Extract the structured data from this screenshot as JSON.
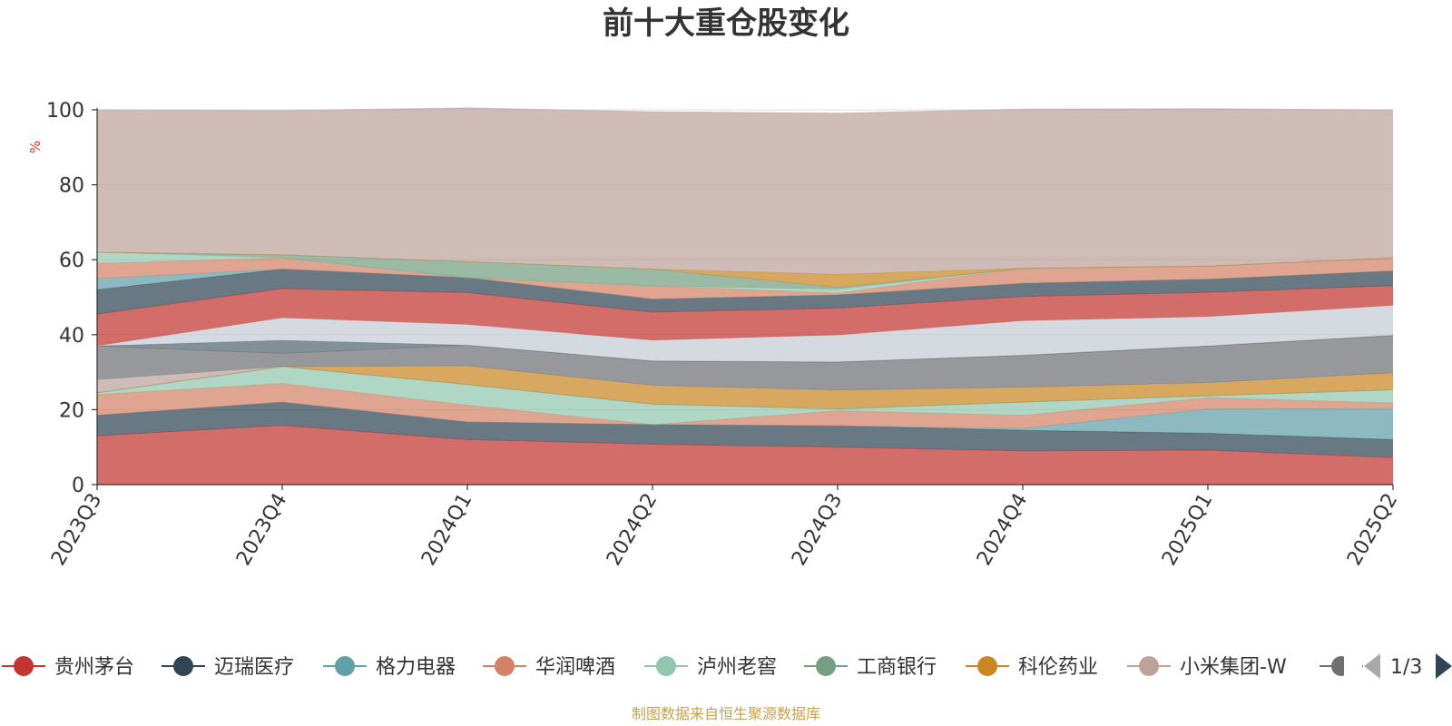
{
  "title": "前十大重仓股变化",
  "source_note": "制图数据来自恒生聚源数据库",
  "chart_data": {
    "type": "area",
    "stacked": true,
    "title": "前十大重仓股变化",
    "ylabel": "%",
    "ylim": [
      0,
      100
    ],
    "yticks": [
      0,
      20,
      40,
      60,
      80,
      100
    ],
    "grid": true,
    "legend_position": "bottom",
    "categories": [
      "2023Q3",
      "2023Q4",
      "2024Q1",
      "2024Q2",
      "2024Q3",
      "2024Q4",
      "2025Q1",
      "2025Q2"
    ],
    "series": [
      {
        "name": "贵州茅台",
        "color": "#c23531",
        "values": [
          13,
          15.8,
          12,
          10.8,
          10,
          9,
          9.2,
          7.2
        ]
      },
      {
        "name": "迈瑞医疗",
        "color": "#2f4554",
        "values": [
          5.5,
          6.2,
          4.7,
          5.2,
          5.7,
          5.5,
          4.5,
          4.8
        ]
      },
      {
        "name": "格力电器",
        "color": "#61a0a8",
        "values": [
          0,
          0,
          0,
          0,
          0,
          0.5,
          6.5,
          8.3
        ]
      },
      {
        "name": "华润啤酒",
        "color": "#d48265",
        "values": [
          5.5,
          5,
          4.5,
          0,
          4,
          3.5,
          3,
          1.5
        ]
      },
      {
        "name": "泸州老窖",
        "color": "#91c7ae",
        "values": [
          0.5,
          4.5,
          5.5,
          5.5,
          0.5,
          3.5,
          0.5,
          3.5
        ]
      },
      {
        "name": "工商银行",
        "color": "#749f83",
        "values": [
          0,
          0,
          0,
          0,
          0,
          0,
          0,
          0
        ]
      },
      {
        "name": "科伦药业",
        "color": "#ca8622",
        "values": [
          0,
          0,
          5,
          5,
          5,
          4,
          3.5,
          4.5
        ]
      },
      {
        "name": "小米集团-W",
        "color": "#bda29a",
        "values": [
          3.5,
          0,
          0,
          0,
          0,
          0,
          0,
          0
        ]
      },
      {
        "name": "",
        "color": "#6e7074",
        "values": [
          9,
          3.5,
          5.5,
          6.5,
          7.5,
          8.5,
          9.8,
          10
        ]
      },
      {
        "name": "",
        "color": "#546570",
        "values": [
          0,
          3.5,
          0,
          0,
          0,
          0,
          0,
          0
        ]
      },
      {
        "name": "",
        "color": "#c4ccd3",
        "values": [
          0,
          6,
          5.5,
          5.5,
          7.2,
          9.2,
          7.8,
          8
        ]
      },
      {
        "name": "",
        "color": "#c23531",
        "values": [
          8.5,
          7.8,
          8.5,
          7.5,
          7.2,
          6.5,
          6.5,
          5.3
        ]
      },
      {
        "name": "",
        "color": "#2f4554",
        "values": [
          6.5,
          5.2,
          4,
          3.5,
          3.5,
          3.5,
          3.5,
          3.9
        ]
      },
      {
        "name": "",
        "color": "#61a0a8",
        "values": [
          3,
          0,
          0,
          0,
          0,
          0,
          0,
          0
        ]
      },
      {
        "name": "",
        "color": "#d48265",
        "values": [
          4,
          3,
          0,
          3.5,
          0.5,
          4,
          3.5,
          3.5
        ]
      },
      {
        "name": "",
        "color": "#91c7ae",
        "values": [
          3,
          0,
          0,
          0,
          1,
          0,
          0,
          0
        ]
      },
      {
        "name": "",
        "color": "#749f83",
        "values": [
          0,
          0.8,
          4.3,
          4.5,
          0.5,
          0,
          0,
          0
        ]
      },
      {
        "name": "",
        "color": "#ca8622",
        "values": [
          0,
          0,
          0,
          0,
          3.5,
          0,
          0,
          0
        ]
      },
      {
        "name": "",
        "color": "#bda29a",
        "values": [
          38,
          38.5,
          41,
          42,
          43,
          42.5,
          42,
          39.5
        ]
      }
    ]
  },
  "legend": {
    "items": [
      {
        "label": "贵州茅台",
        "color": "#c23531"
      },
      {
        "label": "迈瑞医疗",
        "color": "#2f4554"
      },
      {
        "label": "格力电器",
        "color": "#61a0a8"
      },
      {
        "label": "华润啤酒",
        "color": "#d48265"
      },
      {
        "label": "泸州老窖",
        "color": "#91c7ae"
      },
      {
        "label": "工商银行",
        "color": "#749f83"
      },
      {
        "label": "科伦药业",
        "color": "#ca8622"
      },
      {
        "label": "小米集团-W",
        "color": "#bda29a"
      },
      {
        "label": "",
        "color": "#6e7074"
      }
    ],
    "page": "1/3",
    "prev_icon": "triangle-left-icon",
    "next_icon": "triangle-right-icon"
  }
}
